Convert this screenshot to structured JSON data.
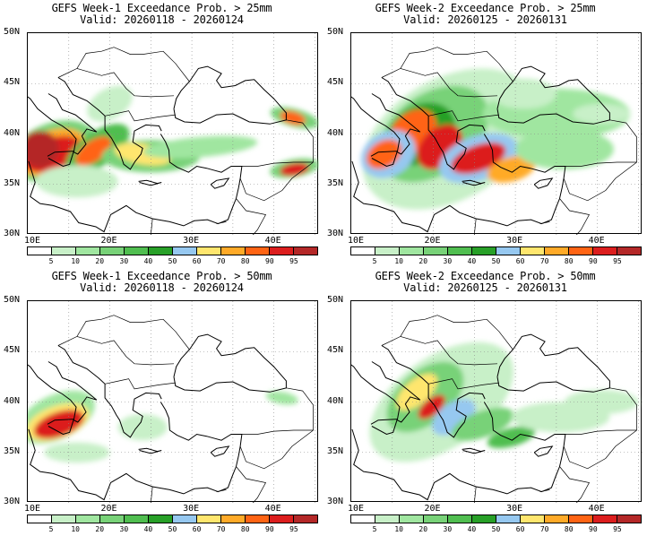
{
  "panels": [
    {
      "title": "GEFS Week-1 Exceedance Prob. > 25mm",
      "valid": "Valid: 20260118 - 20260124",
      "variant": "w1_25"
    },
    {
      "title": "GEFS Week-2 Exceedance Prob. > 25mm",
      "valid": "Valid: 20260125 - 20260131",
      "variant": "w2_25"
    },
    {
      "title": "GEFS Week-1 Exceedance Prob. > 50mm",
      "valid": "Valid: 20260118 - 20260124",
      "variant": "w1_50"
    },
    {
      "title": "GEFS Week-2 Exceedance Prob. > 50mm",
      "valid": "Valid: 20260125 - 20260131",
      "variant": "w2_50"
    }
  ],
  "lat_labels": [
    "50N",
    "45N",
    "40N",
    "35N",
    "30N"
  ],
  "lon_labels": [
    "10E",
    "20E",
    "30E",
    "40E"
  ],
  "colorbar_ticks": [
    "5",
    "10",
    "20",
    "30",
    "40",
    "50",
    "60",
    "70",
    "80",
    "90",
    "95"
  ],
  "colorbar_colors": [
    "#ffffff",
    "#c8f0c8",
    "#a0e6a0",
    "#78d278",
    "#50be50",
    "#28a028",
    "#96c8f0",
    "#ffe66e",
    "#ffaa28",
    "#ff6414",
    "#dc1e1e",
    "#b42828"
  ],
  "colors": {
    "coast": "#000000",
    "grid": "#888888"
  }
}
